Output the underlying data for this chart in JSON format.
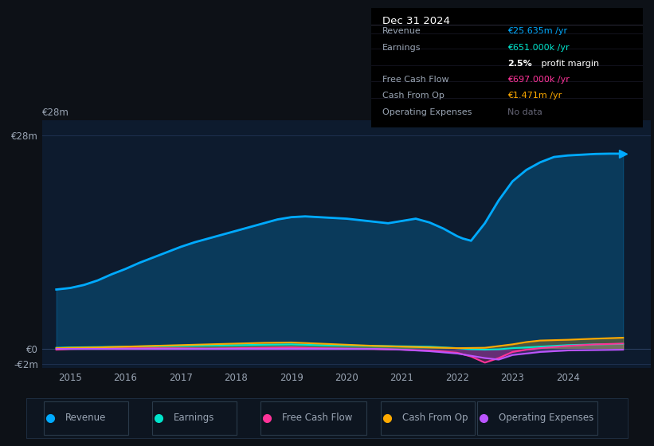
{
  "bg_color": "#0d1117",
  "plot_bg_color": "#0d1b2e",
  "grid_color": "#1e3050",
  "text_color": "#9aa5b4",
  "ylabel_top": "€28m",
  "ylabel_bottom": "-€2m",
  "ylabel_zero": "€0",
  "x_ticks": [
    2015,
    2016,
    2017,
    2018,
    2019,
    2020,
    2021,
    2022,
    2023,
    2024
  ],
  "xlim": [
    2014.5,
    2025.5
  ],
  "ylim": [
    -2.5,
    30.0
  ],
  "revenue_color": "#00aaff",
  "earnings_color": "#00e5cc",
  "fcf_color": "#ff3399",
  "cashfromop_color": "#ffaa00",
  "opex_color": "#bb55ff",
  "revenue_x": [
    2014.75,
    2015.0,
    2015.25,
    2015.5,
    2015.75,
    2016.0,
    2016.25,
    2016.5,
    2016.75,
    2017.0,
    2017.25,
    2017.5,
    2017.75,
    2018.0,
    2018.25,
    2018.5,
    2018.75,
    2019.0,
    2019.25,
    2019.5,
    2019.75,
    2020.0,
    2020.25,
    2020.5,
    2020.75,
    2021.0,
    2021.25,
    2021.5,
    2021.75,
    2022.0,
    2022.1,
    2022.25,
    2022.5,
    2022.75,
    2023.0,
    2023.25,
    2023.5,
    2023.75,
    2024.0,
    2024.25,
    2024.5,
    2024.75,
    2025.0
  ],
  "revenue_y": [
    7.8,
    8.0,
    8.4,
    9.0,
    9.8,
    10.5,
    11.3,
    12.0,
    12.7,
    13.4,
    14.0,
    14.5,
    15.0,
    15.5,
    16.0,
    16.5,
    17.0,
    17.3,
    17.4,
    17.3,
    17.2,
    17.1,
    16.9,
    16.7,
    16.5,
    16.8,
    17.1,
    16.6,
    15.8,
    14.8,
    14.5,
    14.2,
    16.5,
    19.5,
    22.0,
    23.5,
    24.5,
    25.2,
    25.4,
    25.5,
    25.6,
    25.635,
    25.635
  ],
  "earnings_x": [
    2014.75,
    2015.0,
    2015.5,
    2016.0,
    2016.5,
    2017.0,
    2017.5,
    2018.0,
    2018.5,
    2019.0,
    2019.5,
    2020.0,
    2020.5,
    2021.0,
    2021.5,
    2021.75,
    2022.0,
    2022.25,
    2022.5,
    2022.75,
    2023.0,
    2023.5,
    2024.0,
    2024.5,
    2025.0
  ],
  "earnings_y": [
    0.15,
    0.2,
    0.25,
    0.3,
    0.35,
    0.4,
    0.45,
    0.5,
    0.55,
    0.6,
    0.5,
    0.45,
    0.4,
    0.35,
    0.3,
    0.2,
    0.1,
    -0.05,
    -0.1,
    -0.05,
    0.1,
    0.3,
    0.5,
    0.6,
    0.651
  ],
  "fcf_x": [
    2014.75,
    2015.0,
    2015.5,
    2016.0,
    2016.5,
    2017.0,
    2017.5,
    2018.0,
    2018.5,
    2019.0,
    2019.5,
    2020.0,
    2020.5,
    2021.0,
    2021.5,
    2022.0,
    2022.25,
    2022.5,
    2022.75,
    2023.0,
    2023.25,
    2023.5,
    2024.0,
    2024.5,
    2025.0
  ],
  "fcf_y": [
    -0.1,
    0.0,
    0.05,
    0.08,
    0.1,
    0.08,
    0.05,
    0.1,
    0.15,
    0.2,
    0.1,
    0.05,
    0.0,
    -0.1,
    -0.2,
    -0.5,
    -1.0,
    -1.8,
    -1.2,
    -0.4,
    -0.1,
    0.1,
    0.4,
    0.6,
    0.697
  ],
  "cashfromop_x": [
    2014.75,
    2015.0,
    2015.5,
    2016.0,
    2016.5,
    2017.0,
    2017.5,
    2018.0,
    2018.5,
    2019.0,
    2019.5,
    2020.0,
    2020.5,
    2021.0,
    2021.5,
    2022.0,
    2022.5,
    2023.0,
    2023.25,
    2023.5,
    2024.0,
    2024.5,
    2025.0
  ],
  "cashfromop_y": [
    0.1,
    0.15,
    0.2,
    0.3,
    0.4,
    0.5,
    0.6,
    0.7,
    0.8,
    0.85,
    0.7,
    0.55,
    0.4,
    0.3,
    0.2,
    0.1,
    0.15,
    0.6,
    0.9,
    1.1,
    1.2,
    1.35,
    1.471
  ],
  "opex_x": [
    2014.75,
    2015.0,
    2015.5,
    2016.0,
    2016.5,
    2017.0,
    2017.5,
    2018.0,
    2018.5,
    2019.0,
    2019.5,
    2020.0,
    2020.5,
    2021.0,
    2021.5,
    2022.0,
    2022.25,
    2022.5,
    2022.75,
    2023.0,
    2023.5,
    2024.0,
    2024.5,
    2025.0
  ],
  "opex_y": [
    0.0,
    0.0,
    0.0,
    0.0,
    0.0,
    0.0,
    0.0,
    0.0,
    0.0,
    0.0,
    0.0,
    0.0,
    0.0,
    -0.1,
    -0.3,
    -0.6,
    -0.9,
    -1.2,
    -1.4,
    -0.8,
    -0.4,
    -0.2,
    -0.15,
    -0.1
  ],
  "infobox": {
    "title": "Dec 31 2024",
    "rows": [
      {
        "label": "Revenue",
        "value": "€25.635m /yr",
        "value_color": "#00aaff"
      },
      {
        "label": "Earnings",
        "value": "€651.000k /yr",
        "value_color": "#00e5cc"
      },
      {
        "label": "",
        "value2a": "2.5%",
        "value2b": " profit margin"
      },
      {
        "label": "Free Cash Flow",
        "value": "€697.000k /yr",
        "value_color": "#ff3399"
      },
      {
        "label": "Cash From Op",
        "value": "€1.471m /yr",
        "value_color": "#ffaa00"
      },
      {
        "label": "Operating Expenses",
        "value": "No data",
        "value_color": "#666677"
      }
    ]
  },
  "legend": [
    {
      "label": "Revenue",
      "color": "#00aaff"
    },
    {
      "label": "Earnings",
      "color": "#00e5cc"
    },
    {
      "label": "Free Cash Flow",
      "color": "#ff3399"
    },
    {
      "label": "Cash From Op",
      "color": "#ffaa00"
    },
    {
      "label": "Operating Expenses",
      "color": "#bb55ff"
    }
  ]
}
